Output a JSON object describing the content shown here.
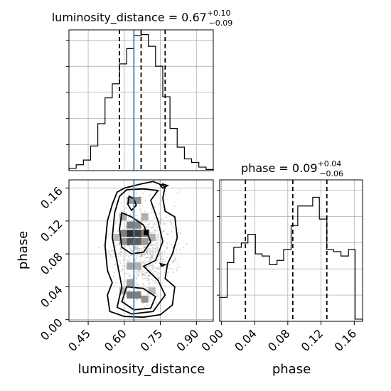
{
  "chart_data": [
    {
      "type": "histogram",
      "parameter": "luminosity_distance",
      "title_prefix": "luminosity_distance = 0.67",
      "title_plus": "+0.10",
      "title_minus": "−0.09",
      "xlim": [
        0.37,
        0.97
      ],
      "bins": [
        0.37,
        0.4,
        0.43,
        0.46,
        0.49,
        0.52,
        0.55,
        0.58,
        0.61,
        0.64,
        0.67,
        0.7,
        0.73,
        0.76,
        0.79,
        0.82,
        0.85,
        0.88,
        0.91,
        0.94,
        0.97
      ],
      "counts": [
        0.2,
        0.5,
        0.9,
        2.1,
        4.0,
        6.2,
        7.4,
        9.1,
        10.4,
        11.5,
        11.6,
        10.6,
        8.9,
        6.3,
        3.6,
        2.0,
        1.0,
        0.7,
        0.3,
        0.1
      ],
      "ylim": [
        0,
        12
      ],
      "quantiles": [
        0.58,
        0.67,
        0.77
      ],
      "truth": 0.64
    },
    {
      "type": "histogram",
      "parameter": "phase",
      "title_prefix": "phase = 0.09",
      "title_plus": "+0.04",
      "title_minus": "−0.06",
      "xlim": [
        -0.002,
        0.17
      ],
      "bins": [
        -0.002,
        0.007,
        0.015,
        0.024,
        0.032,
        0.041,
        0.049,
        0.058,
        0.067,
        0.075,
        0.084,
        0.092,
        0.101,
        0.11,
        0.118,
        0.127,
        0.135,
        0.144,
        0.153,
        0.161,
        0.17
      ],
      "counts": [
        1.1,
        2.7,
        3.4,
        3.6,
        4.0,
        3.1,
        3.0,
        2.6,
        2.8,
        3.3,
        4.4,
        5.3,
        5.3,
        5.7,
        4.7,
        3.3,
        3.2,
        3.0,
        3.3,
        0.1
      ],
      "ylim": [
        0,
        6.5
      ],
      "quantiles": [
        0.029,
        0.086,
        0.127
      ]
    },
    {
      "type": "scatter",
      "x_parameter": "luminosity_distance",
      "y_parameter": "phase",
      "xlabel": "luminosity_distance",
      "ylabel": "phase",
      "xlim": [
        0.37,
        0.97
      ],
      "ylim": [
        -0.002,
        0.17
      ],
      "x_ticks": [
        "0.45",
        "0.60",
        "0.75",
        "0.90"
      ],
      "x_tick_values": [
        0.45,
        0.6,
        0.75,
        0.9
      ],
      "y_ticks": [
        "0.00",
        "0.04",
        "0.08",
        "0.12",
        "0.16"
      ],
      "y_tick_values": [
        0.0,
        0.04,
        0.08,
        0.12,
        0.16
      ],
      "truth": 0.64,
      "contour_outer": [
        [
          0.67,
          0.165
        ],
        [
          0.72,
          0.168
        ],
        [
          0.77,
          0.162
        ],
        [
          0.76,
          0.148
        ],
        [
          0.77,
          0.132
        ],
        [
          0.81,
          0.125
        ],
        [
          0.82,
          0.1
        ],
        [
          0.8,
          0.08
        ],
        [
          0.78,
          0.068
        ],
        [
          0.77,
          0.05
        ],
        [
          0.81,
          0.04
        ],
        [
          0.8,
          0.018
        ],
        [
          0.75,
          0.006
        ],
        [
          0.68,
          0.003
        ],
        [
          0.6,
          0.004
        ],
        [
          0.54,
          0.01
        ],
        [
          0.53,
          0.03
        ],
        [
          0.55,
          0.045
        ],
        [
          0.53,
          0.06
        ],
        [
          0.52,
          0.09
        ],
        [
          0.53,
          0.12
        ],
        [
          0.55,
          0.14
        ],
        [
          0.57,
          0.155
        ],
        [
          0.6,
          0.16
        ],
        [
          0.67,
          0.165
        ]
      ],
      "contour_mid": [
        [
          0.61,
          0.158
        ],
        [
          0.68,
          0.159
        ],
        [
          0.74,
          0.157
        ],
        [
          0.71,
          0.145
        ],
        [
          0.74,
          0.12
        ],
        [
          0.76,
          0.095
        ],
        [
          0.73,
          0.072
        ],
        [
          0.68,
          0.065
        ],
        [
          0.74,
          0.048
        ],
        [
          0.77,
          0.03
        ],
        [
          0.72,
          0.01
        ],
        [
          0.63,
          0.007
        ],
        [
          0.57,
          0.015
        ],
        [
          0.59,
          0.04
        ],
        [
          0.57,
          0.07
        ],
        [
          0.55,
          0.1
        ],
        [
          0.56,
          0.13
        ],
        [
          0.58,
          0.15
        ],
        [
          0.61,
          0.158
        ]
      ],
      "contour_inner": [
        [
          0.59,
          0.13
        ],
        [
          0.63,
          0.125
        ],
        [
          0.68,
          0.115
        ],
        [
          0.71,
          0.095
        ],
        [
          0.68,
          0.082
        ],
        [
          0.63,
          0.08
        ],
        [
          0.59,
          0.088
        ],
        [
          0.58,
          0.11
        ],
        [
          0.59,
          0.13
        ]
      ],
      "contour_low": [
        [
          0.61,
          0.04
        ],
        [
          0.68,
          0.038
        ],
        [
          0.73,
          0.028
        ],
        [
          0.71,
          0.014
        ],
        [
          0.64,
          0.012
        ],
        [
          0.59,
          0.022
        ],
        [
          0.61,
          0.04
        ]
      ],
      "contour_top": [
        [
          0.62,
          0.15
        ],
        [
          0.64,
          0.147
        ],
        [
          0.65,
          0.139
        ],
        [
          0.63,
          0.133
        ],
        [
          0.615,
          0.14
        ],
        [
          0.62,
          0.15
        ]
      ],
      "contour_speck": [
        [
          0.76,
          0.165
        ],
        [
          0.78,
          0.163
        ],
        [
          0.76,
          0.16
        ],
        [
          0.75,
          0.163
        ],
        [
          0.76,
          0.165
        ]
      ],
      "contour_speck2": [
        [
          0.75,
          0.068
        ],
        [
          0.77,
          0.067
        ],
        [
          0.755,
          0.065
        ],
        [
          0.75,
          0.068
        ]
      ],
      "density_cells": [
        {
          "x": 0.625,
          "y": 0.105,
          "v": 0.95
        },
        {
          "x": 0.655,
          "y": 0.105,
          "v": 0.85
        },
        {
          "x": 0.625,
          "y": 0.095,
          "v": 0.75
        },
        {
          "x": 0.655,
          "y": 0.095,
          "v": 0.7
        },
        {
          "x": 0.595,
          "y": 0.105,
          "v": 0.55
        },
        {
          "x": 0.685,
          "y": 0.105,
          "v": 0.55
        },
        {
          "x": 0.625,
          "y": 0.115,
          "v": 0.55
        },
        {
          "x": 0.655,
          "y": 0.115,
          "v": 0.5
        },
        {
          "x": 0.595,
          "y": 0.095,
          "v": 0.45
        },
        {
          "x": 0.685,
          "y": 0.095,
          "v": 0.4
        },
        {
          "x": 0.625,
          "y": 0.03,
          "v": 0.55
        },
        {
          "x": 0.655,
          "y": 0.03,
          "v": 0.55
        },
        {
          "x": 0.685,
          "y": 0.025,
          "v": 0.45
        },
        {
          "x": 0.625,
          "y": 0.045,
          "v": 0.4
        },
        {
          "x": 0.655,
          "y": 0.145,
          "v": 0.45
        },
        {
          "x": 0.625,
          "y": 0.145,
          "v": 0.4
        },
        {
          "x": 0.625,
          "y": 0.065,
          "v": 0.35
        },
        {
          "x": 0.655,
          "y": 0.065,
          "v": 0.3
        },
        {
          "x": 0.595,
          "y": 0.125,
          "v": 0.35
        },
        {
          "x": 0.685,
          "y": 0.125,
          "v": 0.3
        },
        {
          "x": 0.715,
          "y": 0.1,
          "v": 0.3
        },
        {
          "x": 0.565,
          "y": 0.1,
          "v": 0.25
        },
        {
          "x": 0.595,
          "y": 0.035,
          "v": 0.3
        },
        {
          "x": 0.715,
          "y": 0.035,
          "v": 0.25
        }
      ]
    }
  ],
  "diag_x_ticks": [
    "0.00",
    "0.04",
    "0.08",
    "0.12",
    "0.16"
  ],
  "diag_x_tick_values": [
    0.0,
    0.04,
    0.08,
    0.12,
    0.16
  ]
}
